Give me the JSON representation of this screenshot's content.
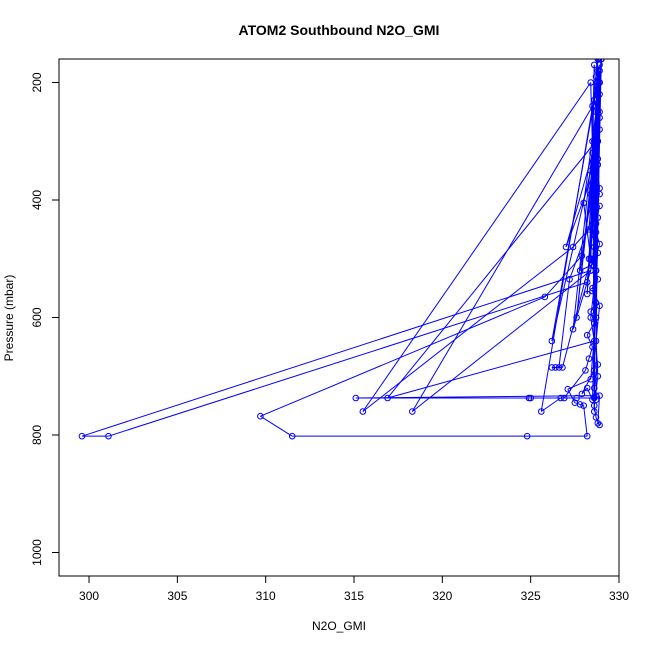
{
  "chart_data": {
    "type": "line",
    "title": "ATOM2 Southbound N2O_GMI",
    "xlabel": "N2O_GMI",
    "ylabel": "Pressure (mbar)",
    "xlim": [
      298.3,
      330.0
    ],
    "ylim": [
      1040,
      160
    ],
    "y_reversed": true,
    "xticks": [
      300,
      305,
      310,
      315,
      320,
      325,
      330
    ],
    "yticks": [
      200,
      400,
      600,
      800,
      1000
    ],
    "grid": false,
    "legend": "none",
    "series_color": "#0000ff",
    "marker": "open-circle",
    "series": [
      {
        "points": [
          [
            328.7,
            150
          ],
          [
            328.8,
            200
          ],
          [
            328.6,
            300
          ],
          [
            328.9,
            380
          ],
          [
            328.5,
            450
          ],
          [
            328.7,
            520
          ],
          [
            328.4,
            600
          ],
          [
            328.8,
            680
          ],
          [
            328.6,
            720
          ],
          [
            328.7,
            733
          ],
          [
            315.1,
            737
          ],
          [
            324.9,
            737
          ],
          [
            325.0,
            737
          ],
          [
            327.6,
            737
          ],
          [
            328.6,
            737
          ],
          [
            328.5,
            240
          ],
          [
            328.8,
            160
          ],
          [
            328.6,
            350
          ],
          [
            327.0,
            480
          ],
          [
            328.7,
            300
          ],
          [
            328.8,
            200
          ],
          [
            328.5,
            420
          ],
          [
            328.7,
            600
          ],
          [
            329.0,
            150
          ],
          [
            328.9,
            200
          ],
          [
            328.6,
            500
          ],
          [
            328.6,
            760
          ],
          [
            328.7,
            310
          ],
          [
            326.2,
            640
          ],
          [
            328.9,
            180
          ],
          [
            328.2,
            560
          ],
          [
            328.7,
            310
          ],
          [
            328.8,
            250
          ],
          [
            328.3,
            450
          ],
          [
            327.4,
            480
          ],
          [
            315.5,
            760
          ],
          [
            328.4,
            200
          ],
          [
            328.6,
            430
          ],
          [
            328.8,
            300
          ],
          [
            327.8,
            520
          ],
          [
            328.5,
            510
          ],
          [
            328.7,
            400
          ],
          [
            328.7,
            380
          ],
          [
            329.0,
            160
          ],
          [
            328.7,
            300
          ],
          [
            327.6,
            600
          ],
          [
            328.8,
            250
          ],
          [
            328.4,
            350
          ],
          [
            328.6,
            400
          ],
          [
            328.9,
            200
          ],
          [
            327.4,
            620
          ],
          [
            328.4,
            520
          ],
          [
            299.6,
            802
          ],
          [
            301.1,
            802
          ],
          [
            328.2,
            540
          ],
          [
            328.7,
            350
          ],
          [
            328.5,
            300
          ],
          [
            328.6,
            170
          ],
          [
            328.4,
            500
          ],
          [
            328.0,
            405
          ],
          [
            328.7,
            250
          ],
          [
            328.5,
            380
          ],
          [
            328.9,
            220
          ],
          [
            318.3,
            760
          ],
          [
            328.4,
            520
          ],
          [
            328.6,
            480
          ],
          [
            328.7,
            360
          ],
          [
            328.8,
            300
          ],
          [
            329.0,
            160
          ],
          [
            328.5,
            740
          ],
          [
            328.2,
            720
          ],
          [
            327.9,
            730
          ],
          [
            328.6,
            690
          ],
          [
            328.8,
            200
          ],
          [
            328.3,
            500
          ],
          [
            328.6,
            420
          ],
          [
            327.2,
            535
          ],
          [
            326.6,
            685
          ],
          [
            326.4,
            685
          ],
          [
            326.2,
            685
          ],
          [
            326.8,
            685
          ],
          [
            328.4,
            500
          ],
          [
            328.7,
            300
          ],
          [
            316.9,
            737
          ],
          [
            328.6,
            640
          ],
          [
            328.8,
            220
          ],
          [
            328.5,
            380
          ],
          [
            327.9,
            495
          ],
          [
            325.8,
            565
          ],
          [
            309.7,
            768
          ],
          [
            311.5,
            802
          ],
          [
            324.8,
            802
          ],
          [
            328.2,
            802
          ],
          [
            328.0,
            750
          ],
          [
            327.8,
            748
          ],
          [
            327.5,
            745
          ],
          [
            327.1,
            722
          ],
          [
            328.4,
            705
          ],
          [
            328.7,
            600
          ],
          [
            328.9,
            250
          ],
          [
            328.6,
            420
          ],
          [
            328.8,
            180
          ],
          [
            328.7,
            740
          ],
          [
            328.9,
            733
          ],
          [
            328.8,
            780
          ],
          [
            328.9,
            783
          ],
          [
            328.7,
            770
          ],
          [
            328.6,
            750
          ],
          [
            328.8,
            700
          ],
          [
            328.7,
            640
          ],
          [
            328.9,
            580
          ],
          [
            328.5,
            550
          ],
          [
            328.7,
            520
          ],
          [
            328.8,
            490
          ],
          [
            328.6,
            460
          ],
          [
            328.7,
            440
          ],
          [
            328.9,
            410
          ],
          [
            328.4,
            390
          ],
          [
            328.6,
            360
          ],
          [
            328.8,
            340
          ],
          [
            328.5,
            320
          ],
          [
            328.7,
            290
          ],
          [
            328.9,
            260
          ],
          [
            328.6,
            230
          ],
          [
            328.8,
            210
          ],
          [
            328.7,
            190
          ],
          [
            328.9,
            170
          ],
          [
            325.6,
            760
          ],
          [
            326.7,
            737
          ],
          [
            326.9,
            737
          ],
          [
            328.1,
            690
          ],
          [
            328.3,
            670
          ],
          [
            328.5,
            650
          ],
          [
            328.2,
            630
          ],
          [
            328.6,
            610
          ],
          [
            328.4,
            590
          ],
          [
            328.7,
            575
          ],
          [
            328.5,
            555
          ],
          [
            328.8,
            535
          ],
          [
            328.6,
            505
          ],
          [
            328.9,
            475
          ],
          [
            328.7,
            455
          ],
          [
            328.8,
            430
          ],
          [
            328.6,
            410
          ],
          [
            328.9,
            390
          ],
          [
            328.7,
            370
          ],
          [
            328.8,
            330
          ],
          [
            328.9,
            280
          ],
          [
            328.7,
            240
          ],
          [
            328.9,
            200
          ],
          [
            329.0,
            160
          ]
        ]
      }
    ]
  }
}
